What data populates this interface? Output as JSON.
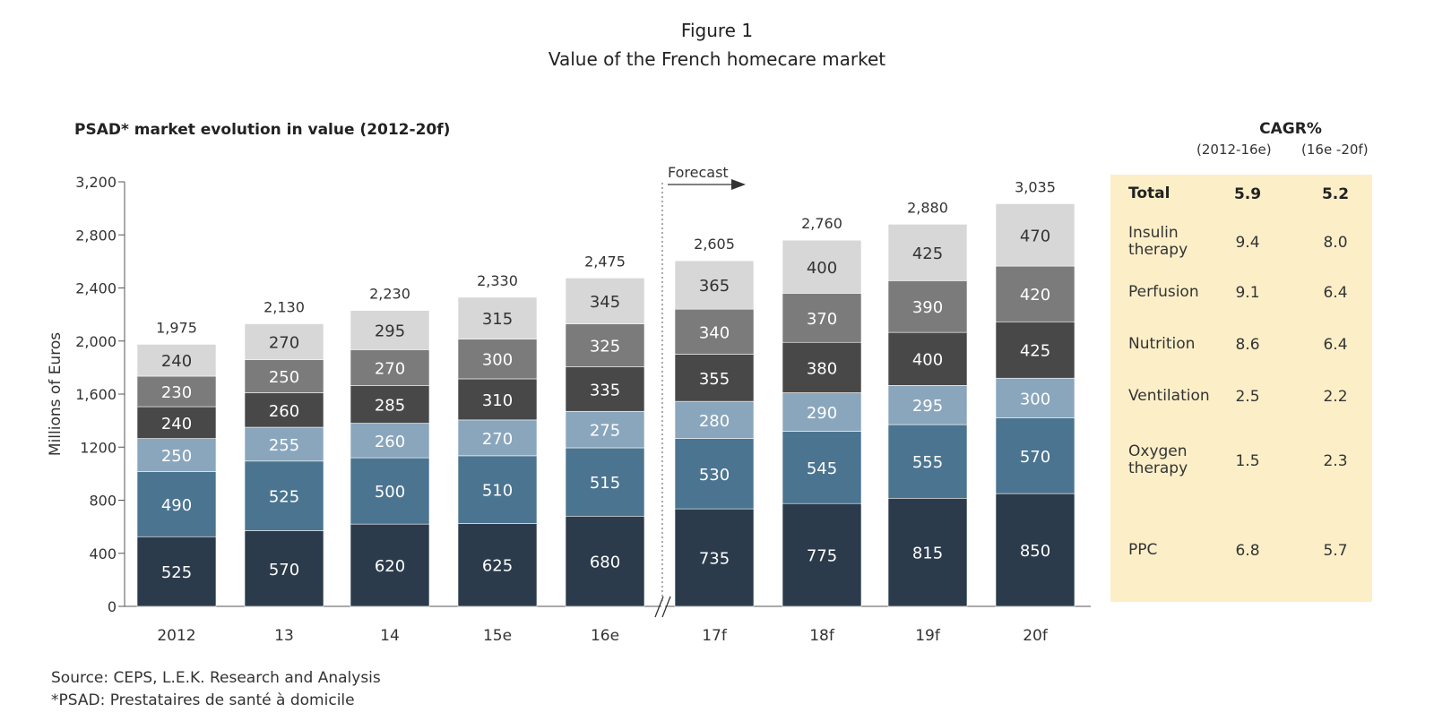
{
  "figure_label": "Figure 1",
  "figure_title": "Value of the French homecare market",
  "panel_title": "PSAD* market evolution in value  (2012-20f)",
  "forecast_label": "Forecast",
  "colors": {
    "PPC": "#2b3b4b",
    "Oxygen therapy": "#4b7490",
    "Ventilation": "#8aa6bc",
    "Nutrition": "#484848",
    "Perfusion": "#7b7b7b",
    "Insulin therapy": "#d7d7d7",
    "cagr_panel": "#fcefc8"
  },
  "chart_data": {
    "type": "bar",
    "stacked": true,
    "categories": [
      "2012",
      "13",
      "14",
      "15e",
      "16e",
      "17f",
      "18f",
      "19f",
      "20f"
    ],
    "series": [
      {
        "name": "PPC",
        "values": [
          525,
          570,
          620,
          625,
          680,
          735,
          775,
          815,
          850
        ]
      },
      {
        "name": "Oxygen therapy",
        "values": [
          490,
          525,
          500,
          510,
          515,
          530,
          545,
          555,
          570
        ]
      },
      {
        "name": "Ventilation",
        "values": [
          250,
          255,
          260,
          270,
          275,
          280,
          290,
          295,
          300
        ]
      },
      {
        "name": "Nutrition",
        "values": [
          240,
          260,
          285,
          310,
          335,
          355,
          380,
          400,
          425
        ]
      },
      {
        "name": "Perfusion",
        "values": [
          230,
          250,
          270,
          300,
          325,
          340,
          370,
          390,
          420
        ]
      },
      {
        "name": "Insulin therapy",
        "values": [
          240,
          270,
          295,
          315,
          345,
          365,
          400,
          425,
          470
        ]
      }
    ],
    "totals": [
      "1,975",
      "2,130",
      "2,230",
      "2,330",
      "2,475",
      "2,605",
      "2,760",
      "2,880",
      "3,035"
    ],
    "ylabel": "Millions of Euros",
    "ylim": [
      0,
      3200
    ],
    "yticks": [
      "0",
      "400",
      "800",
      "1200",
      "1,600",
      "2,000",
      "2,400",
      "2,800",
      "3,200"
    ],
    "forecast_start_index": 5
  },
  "cagr": {
    "title": "CAGR%",
    "periods": [
      "(2012-16e)",
      "(16e -20f)"
    ],
    "rows": [
      {
        "label": "Total",
        "v1": "5.9",
        "v2": "5.2",
        "bold": true
      },
      {
        "label": "Insulin therapy",
        "v1": "9.4",
        "v2": "8.0"
      },
      {
        "label": "Perfusion",
        "v1": "9.1",
        "v2": "6.4"
      },
      {
        "label": "Nutrition",
        "v1": "8.6",
        "v2": "6.4"
      },
      {
        "label": "Ventilation",
        "v1": "2.5",
        "v2": "2.2"
      },
      {
        "label": "Oxygen therapy",
        "v1": "1.5",
        "v2": "2.3"
      },
      {
        "label": "PPC",
        "v1": "6.8",
        "v2": "5.7"
      }
    ]
  },
  "source": "Source: CEPS, L.E.K. Research and Analysis",
  "footnote": "*PSAD: Prestataires de santé à domicile"
}
